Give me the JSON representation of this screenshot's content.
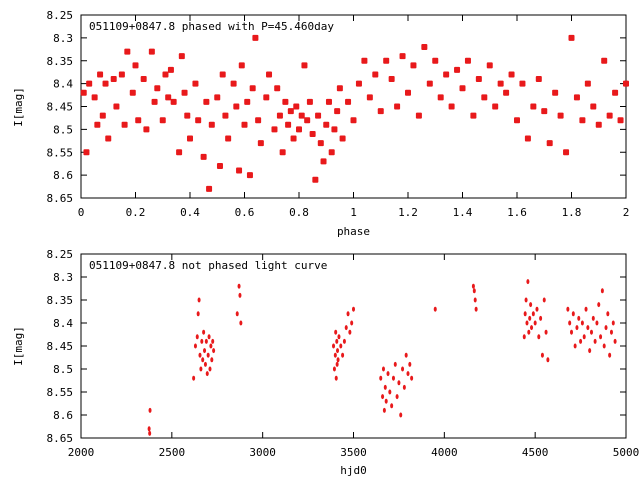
{
  "chart_data": [
    {
      "type": "scatter",
      "title": "051109+0847.8 phased with P=45.460day",
      "xlabel": "phase",
      "ylabel": "I[mag]",
      "xlim": [
        0,
        2
      ],
      "ylim": [
        8.65,
        8.25
      ],
      "y_inverted": true,
      "xticks": [
        "0",
        "0.2",
        "0.4",
        "0.6",
        "0.8",
        "1",
        "1.2",
        "1.4",
        "1.6",
        "1.8",
        "2"
      ],
      "xtick_values": [
        0,
        0.2,
        0.4,
        0.6,
        0.8,
        1.0,
        1.2,
        1.4,
        1.6,
        1.8,
        2.0
      ],
      "yticks": [
        "8.25",
        "8.3",
        "8.35",
        "8.4",
        "8.45",
        "8.5",
        "8.55",
        "8.6",
        "8.65"
      ],
      "ytick_values": [
        8.25,
        8.3,
        8.35,
        8.4,
        8.45,
        8.5,
        8.55,
        8.6,
        8.65
      ],
      "color": "#e8191b",
      "points": [
        [
          0.01,
          8.42
        ],
        [
          0.02,
          8.55
        ],
        [
          0.03,
          8.4
        ],
        [
          0.05,
          8.43
        ],
        [
          0.06,
          8.49
        ],
        [
          0.07,
          8.38
        ],
        [
          0.08,
          8.47
        ],
        [
          0.09,
          8.4
        ],
        [
          0.1,
          8.52
        ],
        [
          0.12,
          8.39
        ],
        [
          0.13,
          8.45
        ],
        [
          0.15,
          8.38
        ],
        [
          0.16,
          8.49
        ],
        [
          0.17,
          8.33
        ],
        [
          0.19,
          8.42
        ],
        [
          0.2,
          8.36
        ],
        [
          0.21,
          8.48
        ],
        [
          0.23,
          8.39
        ],
        [
          0.24,
          8.5
        ],
        [
          0.26,
          8.33
        ],
        [
          0.27,
          8.44
        ],
        [
          0.28,
          8.41
        ],
        [
          0.3,
          8.48
        ],
        [
          0.31,
          8.38
        ],
        [
          0.32,
          8.43
        ],
        [
          0.33,
          8.37
        ],
        [
          0.34,
          8.44
        ],
        [
          0.36,
          8.55
        ],
        [
          0.37,
          8.34
        ],
        [
          0.38,
          8.42
        ],
        [
          0.39,
          8.47
        ],
        [
          0.4,
          8.52
        ],
        [
          0.42,
          8.4
        ],
        [
          0.43,
          8.48
        ],
        [
          0.45,
          8.56
        ],
        [
          0.46,
          8.44
        ],
        [
          0.47,
          8.63
        ],
        [
          0.48,
          8.49
        ],
        [
          0.5,
          8.43
        ],
        [
          0.51,
          8.58
        ],
        [
          0.52,
          8.38
        ],
        [
          0.53,
          8.47
        ],
        [
          0.54,
          8.52
        ],
        [
          0.56,
          8.4
        ],
        [
          0.57,
          8.45
        ],
        [
          0.58,
          8.59
        ],
        [
          0.59,
          8.36
        ],
        [
          0.6,
          8.49
        ],
        [
          0.61,
          8.44
        ],
        [
          0.62,
          8.6
        ],
        [
          0.63,
          8.41
        ],
        [
          0.64,
          8.3
        ],
        [
          0.65,
          8.48
        ],
        [
          0.66,
          8.53
        ],
        [
          0.68,
          8.43
        ],
        [
          0.69,
          8.38
        ],
        [
          0.71,
          8.5
        ],
        [
          0.72,
          8.41
        ],
        [
          0.73,
          8.47
        ],
        [
          0.74,
          8.55
        ],
        [
          0.75,
          8.44
        ],
        [
          0.76,
          8.49
        ],
        [
          0.77,
          8.46
        ],
        [
          0.78,
          8.52
        ],
        [
          0.79,
          8.45
        ],
        [
          0.8,
          8.5
        ],
        [
          0.81,
          8.47
        ],
        [
          0.82,
          8.36
        ],
        [
          0.83,
          8.48
        ],
        [
          0.84,
          8.44
        ],
        [
          0.85,
          8.51
        ],
        [
          0.86,
          8.61
        ],
        [
          0.87,
          8.47
        ],
        [
          0.88,
          8.53
        ],
        [
          0.89,
          8.57
        ],
        [
          0.9,
          8.49
        ],
        [
          0.91,
          8.44
        ],
        [
          0.92,
          8.55
        ],
        [
          0.93,
          8.5
        ],
        [
          0.94,
          8.46
        ],
        [
          0.95,
          8.41
        ],
        [
          0.96,
          8.52
        ],
        [
          0.98,
          8.44
        ],
        [
          1.0,
          8.48
        ],
        [
          1.02,
          8.4
        ],
        [
          1.04,
          8.35
        ],
        [
          1.06,
          8.43
        ],
        [
          1.08,
          8.38
        ],
        [
          1.1,
          8.46
        ],
        [
          1.12,
          8.35
        ],
        [
          1.14,
          8.39
        ],
        [
          1.16,
          8.45
        ],
        [
          1.18,
          8.34
        ],
        [
          1.2,
          8.42
        ],
        [
          1.22,
          8.36
        ],
        [
          1.24,
          8.47
        ],
        [
          1.26,
          8.32
        ],
        [
          1.28,
          8.4
        ],
        [
          1.3,
          8.35
        ],
        [
          1.32,
          8.43
        ],
        [
          1.34,
          8.38
        ],
        [
          1.36,
          8.45
        ],
        [
          1.38,
          8.37
        ],
        [
          1.4,
          8.41
        ],
        [
          1.42,
          8.35
        ],
        [
          1.44,
          8.47
        ],
        [
          1.46,
          8.39
        ],
        [
          1.48,
          8.43
        ],
        [
          1.5,
          8.36
        ],
        [
          1.52,
          8.45
        ],
        [
          1.54,
          8.4
        ],
        [
          1.56,
          8.42
        ],
        [
          1.58,
          8.38
        ],
        [
          1.6,
          8.48
        ],
        [
          1.62,
          8.4
        ],
        [
          1.64,
          8.52
        ],
        [
          1.66,
          8.45
        ],
        [
          1.68,
          8.39
        ],
        [
          1.7,
          8.46
        ],
        [
          1.72,
          8.53
        ],
        [
          1.74,
          8.42
        ],
        [
          1.76,
          8.47
        ],
        [
          1.78,
          8.55
        ],
        [
          1.8,
          8.3
        ],
        [
          1.82,
          8.43
        ],
        [
          1.84,
          8.48
        ],
        [
          1.86,
          8.4
        ],
        [
          1.88,
          8.45
        ],
        [
          1.9,
          8.49
        ],
        [
          1.92,
          8.35
        ],
        [
          1.94,
          8.47
        ],
        [
          1.96,
          8.42
        ],
        [
          1.98,
          8.48
        ],
        [
          2.0,
          8.4
        ]
      ]
    },
    {
      "type": "scatter",
      "title": "051109+0847.8 not phased light curve",
      "xlabel": "hjd0",
      "ylabel": "I[mag]",
      "xlim": [
        2000,
        5000
      ],
      "ylim": [
        8.65,
        8.25
      ],
      "y_inverted": true,
      "xticks": [
        "2000",
        "2500",
        "3000",
        "3500",
        "4000",
        "4500",
        "5000"
      ],
      "xtick_values": [
        2000,
        2500,
        3000,
        3500,
        4000,
        4500,
        5000
      ],
      "yticks": [
        "8.25",
        "8.3",
        "8.35",
        "8.4",
        "8.45",
        "8.5",
        "8.55",
        "8.6",
        "8.65"
      ],
      "ytick_values": [
        8.25,
        8.3,
        8.35,
        8.4,
        8.45,
        8.5,
        8.55,
        8.6,
        8.65
      ],
      "color": "#e8191b",
      "points": [
        [
          2375,
          8.63
        ],
        [
          2378,
          8.64
        ],
        [
          2380,
          8.59
        ],
        [
          2620,
          8.52
        ],
        [
          2630,
          8.45
        ],
        [
          2640,
          8.43
        ],
        [
          2645,
          8.38
        ],
        [
          2650,
          8.35
        ],
        [
          2655,
          8.47
        ],
        [
          2660,
          8.5
        ],
        [
          2665,
          8.44
        ],
        [
          2670,
          8.48
        ],
        [
          2675,
          8.42
        ],
        [
          2680,
          8.46
        ],
        [
          2685,
          8.49
        ],
        [
          2690,
          8.44
        ],
        [
          2695,
          8.51
        ],
        [
          2700,
          8.47
        ],
        [
          2705,
          8.43
        ],
        [
          2710,
          8.5
        ],
        [
          2715,
          8.45
        ],
        [
          2720,
          8.48
        ],
        [
          2725,
          8.44
        ],
        [
          2730,
          8.46
        ],
        [
          2860,
          8.38
        ],
        [
          2870,
          8.32
        ],
        [
          2875,
          8.34
        ],
        [
          2880,
          8.4
        ],
        [
          3390,
          8.45
        ],
        [
          3395,
          8.5
        ],
        [
          3400,
          8.47
        ],
        [
          3402,
          8.42
        ],
        [
          3405,
          8.52
        ],
        [
          3408,
          8.44
        ],
        [
          3410,
          8.49
        ],
        [
          3412,
          8.46
        ],
        [
          3415,
          8.48
        ],
        [
          3420,
          8.43
        ],
        [
          3430,
          8.45
        ],
        [
          3440,
          8.47
        ],
        [
          3450,
          8.44
        ],
        [
          3460,
          8.41
        ],
        [
          3470,
          8.38
        ],
        [
          3480,
          8.42
        ],
        [
          3490,
          8.4
        ],
        [
          3500,
          8.37
        ],
        [
          3650,
          8.52
        ],
        [
          3660,
          8.56
        ],
        [
          3665,
          8.5
        ],
        [
          3670,
          8.59
        ],
        [
          3675,
          8.54
        ],
        [
          3680,
          8.57
        ],
        [
          3690,
          8.51
        ],
        [
          3700,
          8.55
        ],
        [
          3710,
          8.58
        ],
        [
          3720,
          8.52
        ],
        [
          3730,
          8.49
        ],
        [
          3740,
          8.56
        ],
        [
          3750,
          8.53
        ],
        [
          3760,
          8.6
        ],
        [
          3770,
          8.5
        ],
        [
          3780,
          8.54
        ],
        [
          3790,
          8.47
        ],
        [
          3800,
          8.51
        ],
        [
          3810,
          8.49
        ],
        [
          3820,
          8.52
        ],
        [
          3950,
          8.37
        ],
        [
          4160,
          8.32
        ],
        [
          4165,
          8.33
        ],
        [
          4170,
          8.35
        ],
        [
          4175,
          8.37
        ],
        [
          4440,
          8.43
        ],
        [
          4445,
          8.38
        ],
        [
          4450,
          8.35
        ],
        [
          4455,
          8.4
        ],
        [
          4460,
          8.31
        ],
        [
          4465,
          8.42
        ],
        [
          4470,
          8.39
        ],
        [
          4475,
          8.36
        ],
        [
          4480,
          8.41
        ],
        [
          4490,
          8.38
        ],
        [
          4500,
          8.4
        ],
        [
          4510,
          8.37
        ],
        [
          4520,
          8.43
        ],
        [
          4530,
          8.39
        ],
        [
          4540,
          8.47
        ],
        [
          4550,
          8.35
        ],
        [
          4560,
          8.42
        ],
        [
          4570,
          8.48
        ],
        [
          4680,
          8.37
        ],
        [
          4690,
          8.4
        ],
        [
          4700,
          8.42
        ],
        [
          4710,
          8.38
        ],
        [
          4720,
          8.45
        ],
        [
          4730,
          8.41
        ],
        [
          4740,
          8.39
        ],
        [
          4750,
          8.44
        ],
        [
          4760,
          8.4
        ],
        [
          4770,
          8.43
        ],
        [
          4780,
          8.37
        ],
        [
          4790,
          8.41
        ],
        [
          4800,
          8.46
        ],
        [
          4810,
          8.42
        ],
        [
          4820,
          8.39
        ],
        [
          4830,
          8.44
        ],
        [
          4840,
          8.4
        ],
        [
          4850,
          8.36
        ],
        [
          4860,
          8.43
        ],
        [
          4870,
          8.33
        ],
        [
          4880,
          8.45
        ],
        [
          4890,
          8.41
        ],
        [
          4900,
          8.38
        ],
        [
          4910,
          8.47
        ],
        [
          4920,
          8.42
        ],
        [
          4930,
          8.4
        ],
        [
          4940,
          8.44
        ]
      ]
    }
  ]
}
